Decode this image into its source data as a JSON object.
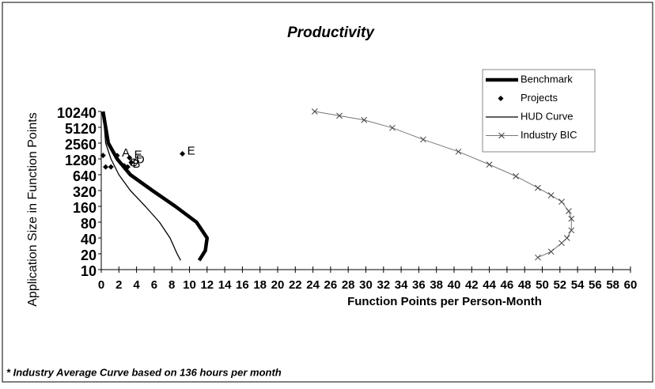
{
  "chart_data": {
    "type": "scatter",
    "title": "Productivity",
    "x_label": "Function Points per Person-Month",
    "y_label": "Application Size in Function Points",
    "footnote": "* Industry Average Curve based on 136 hours per month",
    "xlim": [
      0,
      60
    ],
    "xticks": [
      0,
      2,
      4,
      6,
      8,
      10,
      12,
      14,
      16,
      18,
      20,
      22,
      24,
      26,
      28,
      30,
      32,
      34,
      36,
      38,
      40,
      42,
      44,
      46,
      48,
      50,
      52,
      54,
      56,
      58,
      60
    ],
    "ylim": [
      10,
      10240
    ],
    "yticks": [
      10,
      20,
      40,
      80,
      160,
      320,
      640,
      1280,
      2560,
      5120,
      10240
    ],
    "log_y": true,
    "legend": "upper right",
    "series": [
      {
        "name": "Benchmark",
        "style": "thick-line",
        "color": "#000000",
        "x": [
          0.2,
          0.8,
          1.8,
          3.3,
          5.8,
          8.4,
          10.8,
          12,
          11.8,
          11.1
        ],
        "values": [
          10240,
          2560,
          1280,
          640,
          320,
          160,
          80,
          40,
          23,
          15
        ]
      },
      {
        "name": "Projects",
        "style": "diamond",
        "color": "#000000",
        "x": [
          0.2,
          1.8,
          1.1,
          0.5,
          3.2,
          3.4,
          2.6,
          3.0,
          9.2
        ],
        "values": [
          1490,
          1480,
          900,
          900,
          1350,
          1100,
          950,
          900,
          1600
        ],
        "labels": [
          null,
          "A",
          null,
          null,
          "E",
          "D",
          "C",
          "B",
          "E"
        ]
      },
      {
        "name": "HUD Curve",
        "style": "thin-line",
        "color": "#000000",
        "x": [
          0.2,
          0.5,
          1.1,
          2,
          3.3,
          5,
          6.6,
          7.8,
          8.6,
          9
        ],
        "values": [
          10240,
          2560,
          1280,
          640,
          320,
          160,
          80,
          40,
          20,
          15
        ]
      },
      {
        "name": "Industry BIC",
        "style": "x-line",
        "color": "#777777",
        "x": [
          24.2,
          27,
          29.8,
          33,
          36.5,
          40.5,
          44,
          47,
          49.5,
          51,
          52.2,
          53,
          53.3,
          53.3,
          52.8,
          52.2,
          51,
          49.5
        ],
        "values": [
          10240,
          8500,
          7050,
          5000,
          3000,
          1760,
          1000,
          600,
          360,
          260,
          196,
          130,
          93,
          56,
          40,
          32,
          22,
          17
        ]
      }
    ]
  }
}
